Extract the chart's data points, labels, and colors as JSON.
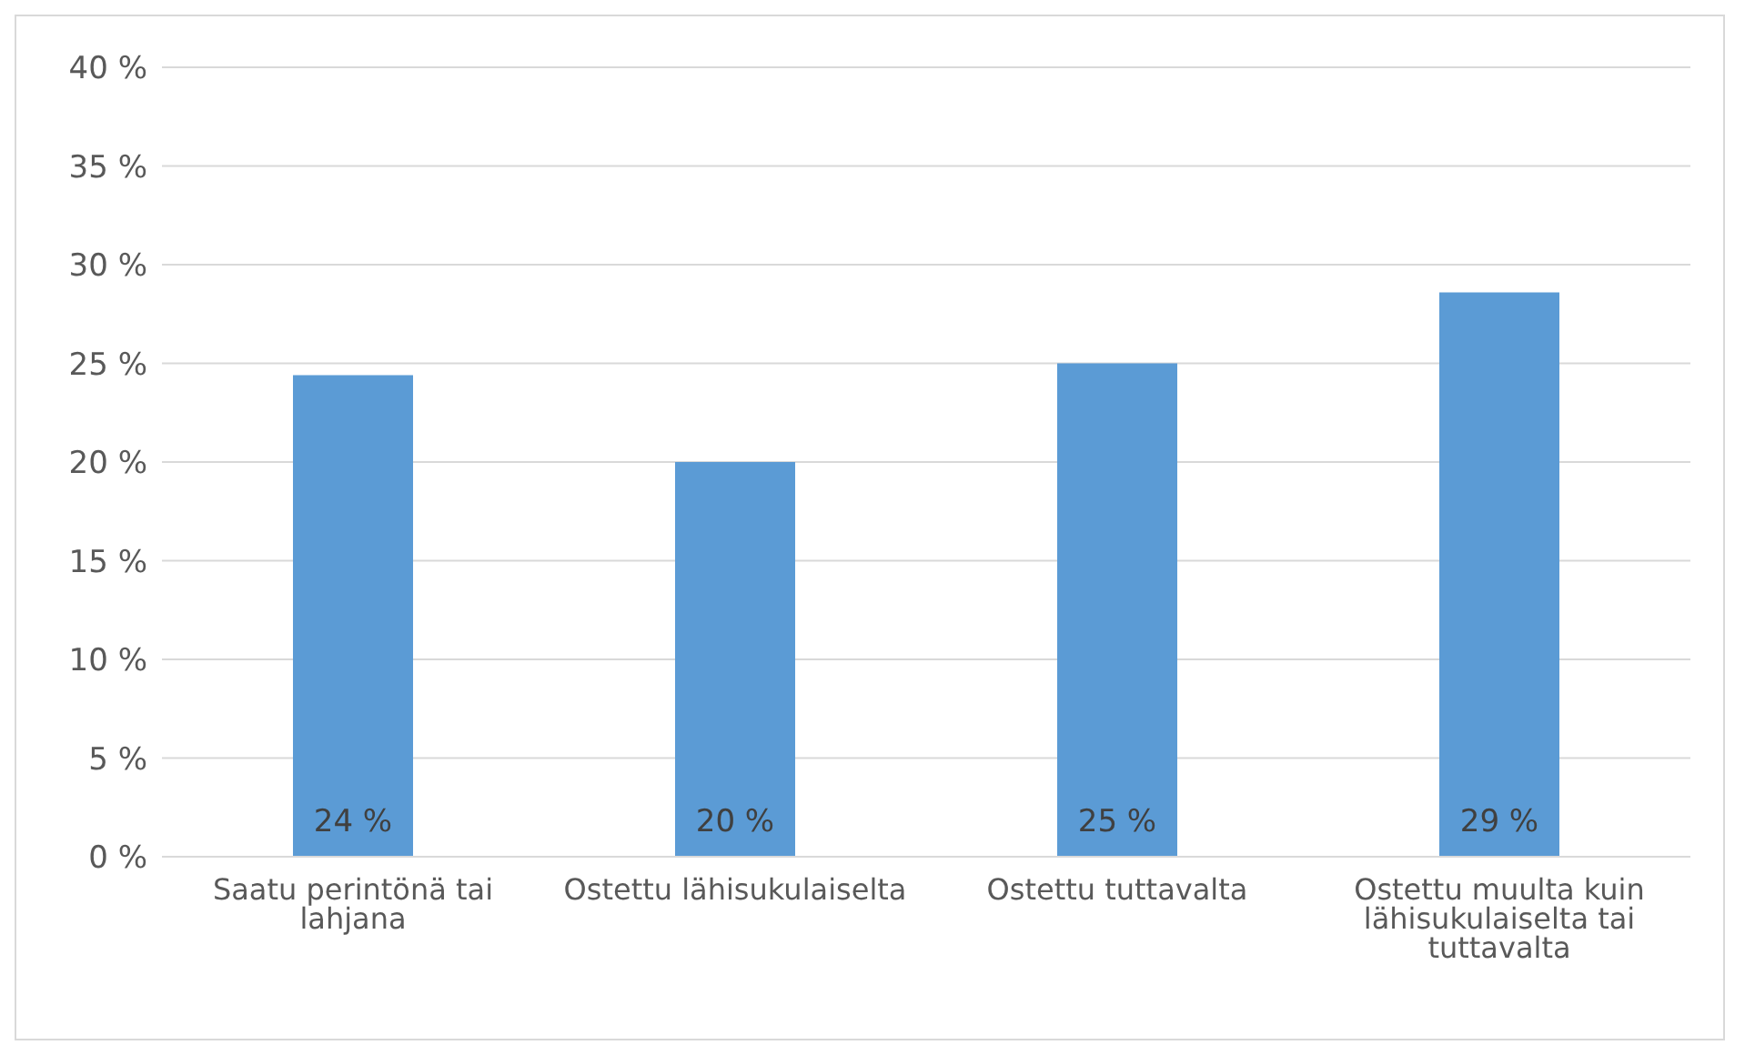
{
  "chart_data": {
    "type": "bar",
    "categories": [
      "Saatu perintönä tai lahjana",
      "Ostettu lähisukulaiselta",
      "Ostettu tuttavalta",
      "Ostettu muulta kuin lähisukulaiselta tai tuttavalta"
    ],
    "values": [
      24.4,
      20,
      25,
      28.6
    ],
    "value_labels": [
      "24 %",
      "20 %",
      "25 %",
      "29 %"
    ],
    "color": "#5b9bd5",
    "ylim": [
      0,
      40
    ],
    "yticks": [
      {
        "value": 0,
        "label": "0 %"
      },
      {
        "value": 5,
        "label": "5 %"
      },
      {
        "value": 10,
        "label": "10 %"
      },
      {
        "value": 15,
        "label": "15 %"
      },
      {
        "value": 20,
        "label": "20 %"
      },
      {
        "value": 25,
        "label": "25 %"
      },
      {
        "value": 30,
        "label": "30 %"
      },
      {
        "value": 35,
        "label": "35 %"
      },
      {
        "value": 40,
        "label": "40 %"
      }
    ],
    "grid": "y",
    "legend": false
  }
}
